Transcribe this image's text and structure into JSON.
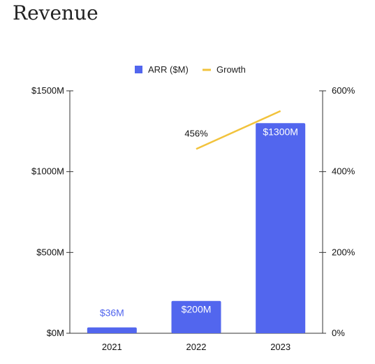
{
  "title": "Revenue",
  "chart_data": {
    "type": "bar",
    "title": "Revenue",
    "categories": [
      "2021",
      "2022",
      "2023"
    ],
    "series": [
      {
        "name": "ARR ($M)",
        "kind": "bar",
        "axis": "left",
        "color": "#5266ee",
        "values": [
          36,
          200,
          1300
        ],
        "labels": [
          "$36M",
          "$200M",
          "$1300M"
        ]
      },
      {
        "name": "Growth",
        "kind": "line",
        "axis": "right",
        "color": "#f2c33c",
        "values": [
          null,
          456,
          550
        ],
        "labels": [
          null,
          "456%",
          null
        ]
      }
    ],
    "y_left": {
      "min": 0,
      "max": 1500,
      "ticks": [
        "$0M",
        "$500M",
        "$1000M",
        "$1500M"
      ],
      "tick_values": [
        0,
        500,
        1000,
        1500
      ]
    },
    "y_right": {
      "min": 0,
      "max": 600,
      "ticks": [
        "0%",
        "200%",
        "400%",
        "600%"
      ],
      "tick_values": [
        0,
        200,
        400,
        600
      ]
    },
    "legend_position": "top-center",
    "grid": false
  }
}
